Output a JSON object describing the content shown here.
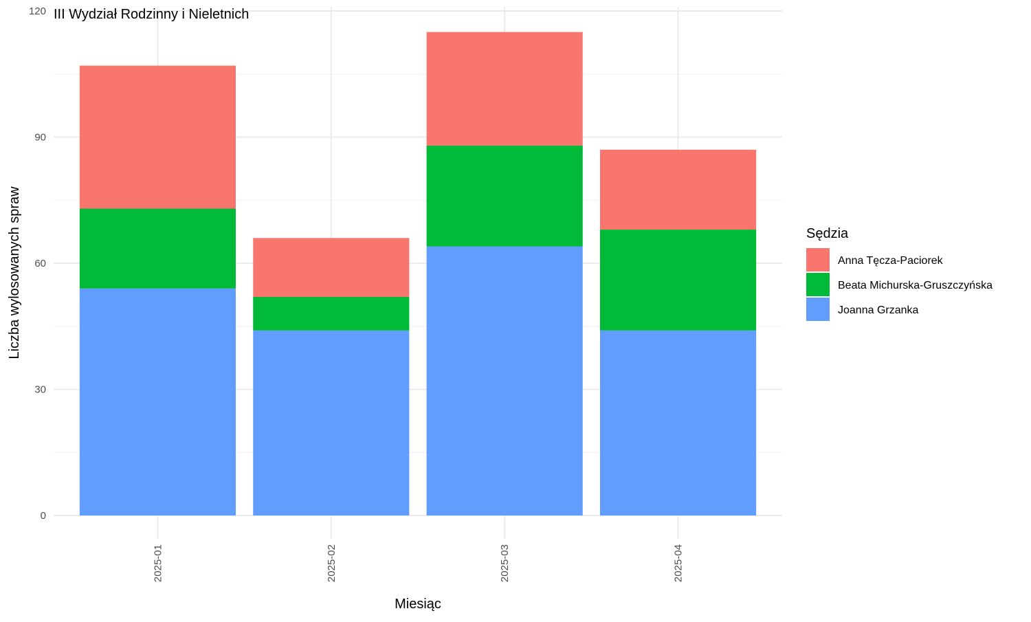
{
  "chart_data": {
    "type": "bar",
    "stacked": true,
    "title": "III Wydział Rodzinny i Nieletnich",
    "xlabel": "Miesiąc",
    "ylabel": "Liczba wylosowanych spraw",
    "categories": [
      "2025-01",
      "2025-02",
      "2025-03",
      "2025-04"
    ],
    "ylim": [
      0,
      120
    ],
    "yticks": [
      0,
      30,
      60,
      90,
      120
    ],
    "grid": true,
    "legend": {
      "title": "Sędzia",
      "position": "right"
    },
    "series": [
      {
        "name": "Joanna Grzanka",
        "color": "#619CFF",
        "values": [
          54,
          44,
          64,
          44
        ]
      },
      {
        "name": "Beata Michurska-Gruszczyńska",
        "color": "#00BA38",
        "values": [
          19,
          8,
          24,
          24
        ]
      },
      {
        "name": "Anna Tęcza-Paciorek",
        "color": "#F8766D",
        "values": [
          34,
          14,
          27,
          19
        ]
      }
    ],
    "legend_order": [
      "Anna Tęcza-Paciorek",
      "Beata Michurska-Gruszczyńska",
      "Joanna Grzanka"
    ]
  }
}
